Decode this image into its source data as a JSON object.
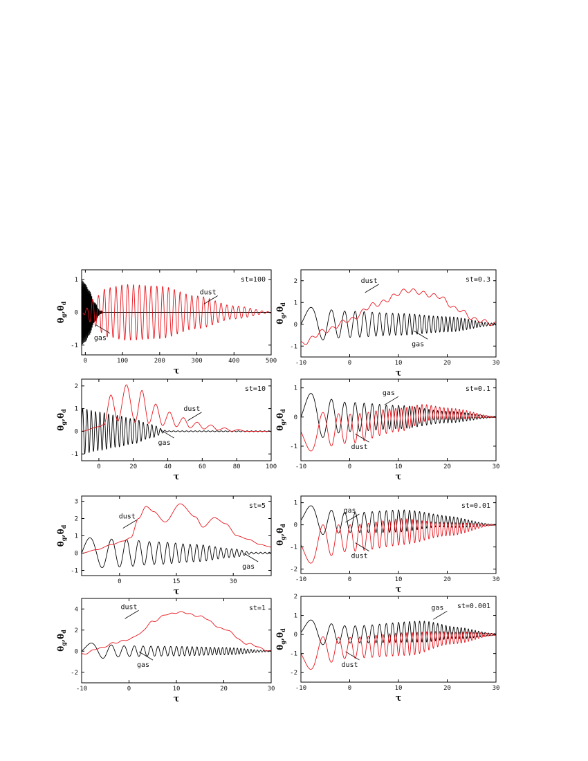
{
  "figure": {
    "ylabel_main": "θ",
    "ylabel_sub_gas": "g",
    "ylabel_sep": ",",
    "ylabel_sub_dust": "d",
    "xlabel": "τ"
  },
  "colors": {
    "gas": "#000000",
    "dust": "#e8131b",
    "frame": "#000000"
  },
  "chart_data": [
    {
      "type": "line",
      "id": "st100",
      "title": "st=100",
      "xlim": [
        -10,
        500
      ],
      "ylim": [
        -1.3,
        1.3
      ],
      "xticks": [
        0,
        100,
        200,
        300,
        400,
        500
      ],
      "yticks": [
        -1,
        0,
        1
      ],
      "series": [
        {
          "name": "gas",
          "kind": "oscillation",
          "freq": 3.0,
          "env": [
            [
              -10,
              1.0
            ],
            [
              0,
              0.9
            ],
            [
              10,
              0.7
            ],
            [
              25,
              0.3
            ],
            [
              40,
              0.05
            ],
            [
              50,
              0.0
            ]
          ]
        },
        {
          "name": "dust",
          "kind": "oscillation",
          "freq": 0.4,
          "env": [
            [
              -10,
              0.0
            ],
            [
              0,
              0.1
            ],
            [
              20,
              0.4
            ],
            [
              60,
              0.75
            ],
            [
              110,
              0.85
            ],
            [
              200,
              0.8
            ],
            [
              300,
              0.5
            ],
            [
              400,
              0.2
            ],
            [
              500,
              0.02
            ]
          ]
        }
      ],
      "annotations": [
        {
          "text": "dust",
          "x": 330,
          "y": 0.55
        },
        {
          "text": "gas",
          "x": 40,
          "y": -0.85
        }
      ]
    },
    {
      "type": "line",
      "id": "st0.3",
      "title": "st=0.3",
      "xlim": [
        -10,
        30
      ],
      "ylim": [
        -1.5,
        2.5
      ],
      "xticks": [
        -10,
        0,
        10,
        20,
        30
      ],
      "yticks": [
        -1,
        0,
        1,
        2
      ],
      "series": [
        {
          "name": "gas",
          "kind": "chirp",
          "a": 0.5,
          "b": 0.12,
          "x0": -10,
          "env": [
            [
              -10,
              0.8
            ],
            [
              0,
              0.6
            ],
            [
              10,
              0.5
            ],
            [
              20,
              0.35
            ],
            [
              30,
              0.05
            ]
          ]
        },
        {
          "name": "dust",
          "kind": "trend",
          "base": [
            [
              -10,
              -0.9
            ],
            [
              -5,
              -0.3
            ],
            [
              0,
              0.2
            ],
            [
              5,
              0.9
            ],
            [
              12,
              1.55
            ],
            [
              18,
              1.3
            ],
            [
              22,
              0.7
            ],
            [
              26,
              0.2
            ],
            [
              30,
              0.0
            ]
          ],
          "ripple": 0.1,
          "freq": 3.0
        }
      ],
      "annotations": [
        {
          "text": "dust",
          "x": 4,
          "y": 1.9
        },
        {
          "text": "gas",
          "x": 14,
          "y": -1.0
        }
      ]
    },
    {
      "type": "line",
      "id": "st10",
      "title": "st=10",
      "xlim": [
        -10,
        100
      ],
      "ylim": [
        -1.3,
        2.3
      ],
      "xticks": [
        0,
        20,
        40,
        60,
        80,
        100
      ],
      "yticks": [
        -1,
        0,
        1,
        2
      ],
      "series": [
        {
          "name": "gas",
          "kind": "oscillation",
          "freq": 2.5,
          "env": [
            [
              -10,
              1.0
            ],
            [
              0,
              0.85
            ],
            [
              10,
              0.7
            ],
            [
              20,
              0.55
            ],
            [
              30,
              0.3
            ],
            [
              40,
              0.02
            ]
          ]
        },
        {
          "name": "dust",
          "kind": "peaks",
          "points": [
            [
              -10,
              0.0
            ],
            [
              0,
              0.2
            ],
            [
              3,
              0.3
            ],
            [
              7,
              1.6
            ],
            [
              11,
              0.45
            ],
            [
              16,
              2.05
            ],
            [
              21,
              0.4
            ],
            [
              25,
              1.8
            ],
            [
              29,
              0.35
            ],
            [
              33,
              1.2
            ],
            [
              37,
              0.25
            ],
            [
              41,
              0.85
            ],
            [
              45,
              0.2
            ],
            [
              49,
              0.6
            ],
            [
              53,
              0.15
            ],
            [
              57,
              0.4
            ],
            [
              61,
              0.1
            ],
            [
              65,
              0.28
            ],
            [
              69,
              0.05
            ],
            [
              73,
              0.15
            ],
            [
              77,
              0.0
            ],
            [
              81,
              0.08
            ],
            [
              85,
              0.0
            ],
            [
              100,
              0.0
            ]
          ]
        }
      ],
      "annotations": [
        {
          "text": "dust",
          "x": 54,
          "y": 0.9
        },
        {
          "text": "gas",
          "x": 38,
          "y": -0.6
        }
      ]
    },
    {
      "type": "line",
      "id": "st0.1",
      "title": "st=0.1",
      "xlim": [
        -10,
        30
      ],
      "ylim": [
        -1.5,
        1.3
      ],
      "xticks": [
        -10,
        0,
        10,
        20,
        30
      ],
      "yticks": [
        -1,
        0,
        1
      ],
      "series": [
        {
          "name": "gas",
          "kind": "chirp",
          "a": 0.5,
          "b": 0.12,
          "x0": -10,
          "env": [
            [
              -10,
              0.85
            ],
            [
              0,
              0.5
            ],
            [
              10,
              0.4
            ],
            [
              20,
              0.2
            ],
            [
              30,
              0.02
            ]
          ]
        },
        {
          "name": "dust",
          "kind": "chirpOffset",
          "a": 0.5,
          "b": 0.12,
          "x0": -10,
          "phase": 3.14,
          "base": [
            [
              -10,
              -0.5
            ],
            [
              0,
              -0.4
            ],
            [
              10,
              -0.1
            ],
            [
              16,
              0.15
            ],
            [
              22,
              0.1
            ],
            [
              30,
              0.0
            ]
          ],
          "env": [
            [
              -10,
              0.7
            ],
            [
              0,
              0.5
            ],
            [
              10,
              0.4
            ],
            [
              20,
              0.2
            ],
            [
              30,
              0.02
            ]
          ]
        }
      ],
      "annotations": [
        {
          "text": "gas",
          "x": 8,
          "y": 0.75
        },
        {
          "text": "dust",
          "x": 2,
          "y": -1.1
        }
      ]
    },
    {
      "type": "line",
      "id": "st5",
      "title": "st=5",
      "xlim": [
        -10,
        40
      ],
      "ylim": [
        -1.3,
        3.3
      ],
      "xticks": [
        0,
        15,
        30
      ],
      "yticks": [
        -1,
        0,
        1,
        2,
        3
      ],
      "series": [
        {
          "name": "gas",
          "kind": "chirp",
          "a": 0.6,
          "b": 0.05,
          "x0": -10,
          "env": [
            [
              -10,
              0.9
            ],
            [
              0,
              0.8
            ],
            [
              10,
              0.65
            ],
            [
              20,
              0.5
            ],
            [
              30,
              0.25
            ],
            [
              35,
              0.05
            ]
          ]
        },
        {
          "name": "dust",
          "kind": "peaks",
          "points": [
            [
              -10,
              0.0
            ],
            [
              -6,
              0.2
            ],
            [
              -2,
              0.5
            ],
            [
              1,
              0.7
            ],
            [
              3,
              0.9
            ],
            [
              5,
              2.0
            ],
            [
              7,
              2.7
            ],
            [
              9,
              2.4
            ],
            [
              12,
              1.8
            ],
            [
              16,
              2.85
            ],
            [
              20,
              2.1
            ],
            [
              22,
              1.5
            ],
            [
              25,
              2.05
            ],
            [
              28,
              1.7
            ],
            [
              31,
              1.0
            ],
            [
              34,
              0.8
            ],
            [
              37,
              0.5
            ],
            [
              40,
              0.35
            ]
          ]
        }
      ],
      "annotations": [
        {
          "text": "dust",
          "x": 2,
          "y": 2.0
        },
        {
          "text": "gas",
          "x": 34,
          "y": -0.9
        }
      ]
    },
    {
      "type": "line",
      "id": "st0.01",
      "title": "st=0.01",
      "xlim": [
        -10,
        30
      ],
      "ylim": [
        -2.2,
        1.3
      ],
      "xticks": [
        -10,
        0,
        10,
        20,
        30
      ],
      "yticks": [
        -2,
        -1,
        0,
        1
      ],
      "series": [
        {
          "name": "gas",
          "kind": "chirpOffset",
          "a": 0.5,
          "b": 0.12,
          "x0": -10,
          "phase": 0,
          "base": [
            [
              -10,
              0.2
            ],
            [
              0,
              0.1
            ],
            [
              15,
              0.2
            ],
            [
              30,
              0.0
            ]
          ],
          "env": [
            [
              -10,
              0.7
            ],
            [
              0,
              0.45
            ],
            [
              10,
              0.5
            ],
            [
              20,
              0.25
            ],
            [
              30,
              0.02
            ]
          ]
        },
        {
          "name": "dust",
          "kind": "chirpOffset",
          "a": 0.5,
          "b": 0.12,
          "x0": -10,
          "phase": 3.14,
          "base": [
            [
              -10,
              -0.9
            ],
            [
              0,
              -0.6
            ],
            [
              12,
              -0.3
            ],
            [
              20,
              -0.2
            ],
            [
              30,
              0.0
            ]
          ],
          "env": [
            [
              -10,
              0.9
            ],
            [
              0,
              0.6
            ],
            [
              10,
              0.6
            ],
            [
              20,
              0.3
            ],
            [
              30,
              0.02
            ]
          ]
        }
      ],
      "annotations": [
        {
          "text": "gas",
          "x": 0,
          "y": 0.55
        },
        {
          "text": "dust",
          "x": 2,
          "y": -1.5
        }
      ]
    },
    {
      "type": "line",
      "id": "st1",
      "title": "st=1",
      "xlim": [
        -10,
        30
      ],
      "ylim": [
        -3,
        5
      ],
      "xticks": [
        -10,
        0,
        10,
        20,
        30
      ],
      "yticks": [
        -2,
        0,
        2,
        4
      ],
      "series": [
        {
          "name": "gas",
          "kind": "chirp",
          "a": 0.5,
          "b": 0.12,
          "x0": -10,
          "env": [
            [
              -10,
              0.8
            ],
            [
              0,
              0.5
            ],
            [
              10,
              0.45
            ],
            [
              20,
              0.35
            ],
            [
              30,
              0.05
            ]
          ]
        },
        {
          "name": "dust",
          "kind": "trend",
          "base": [
            [
              -10,
              -0.3
            ],
            [
              -6,
              0.3
            ],
            [
              -3,
              0.8
            ],
            [
              0,
              1.1
            ],
            [
              2,
              1.6
            ],
            [
              5,
              2.8
            ],
            [
              8,
              3.5
            ],
            [
              11,
              3.7
            ],
            [
              15,
              3.3
            ],
            [
              20,
              2.1
            ],
            [
              25,
              0.7
            ],
            [
              30,
              0.0
            ]
          ],
          "ripple": 0.06,
          "freq": 3.0
        }
      ],
      "annotations": [
        {
          "text": "dust",
          "x": 0,
          "y": 4.0
        },
        {
          "text": "gas",
          "x": 3,
          "y": -1.5
        }
      ]
    },
    {
      "type": "line",
      "id": "st0.001",
      "title": "st=0.001",
      "xlim": [
        -10,
        30
      ],
      "ylim": [
        -2.5,
        2
      ],
      "xticks": [
        -10,
        0,
        10,
        20,
        30
      ],
      "yticks": [
        -2,
        -1,
        0,
        1,
        2
      ],
      "series": [
        {
          "name": "gas",
          "kind": "chirpOffset",
          "a": 0.5,
          "b": 0.12,
          "x0": -10,
          "phase": 0,
          "base": [
            [
              -10,
              0.1
            ],
            [
              0,
              0.0
            ],
            [
              15,
              0.15
            ],
            [
              30,
              0.0
            ]
          ],
          "env": [
            [
              -10,
              0.7
            ],
            [
              0,
              0.45
            ],
            [
              15,
              0.55
            ],
            [
              22,
              0.3
            ],
            [
              30,
              0.05
            ]
          ]
        },
        {
          "name": "dust",
          "kind": "chirpOffset",
          "a": 0.5,
          "b": 0.12,
          "x0": -10,
          "phase": 3.14,
          "base": [
            [
              -10,
              -1.0
            ],
            [
              0,
              -0.7
            ],
            [
              12,
              -0.5
            ],
            [
              20,
              -0.2
            ],
            [
              30,
              0.0
            ]
          ],
          "env": [
            [
              -10,
              0.9
            ],
            [
              0,
              0.55
            ],
            [
              12,
              0.6
            ],
            [
              22,
              0.3
            ],
            [
              30,
              0.05
            ]
          ]
        }
      ],
      "annotations": [
        {
          "text": "gas",
          "x": 18,
          "y": 1.3
        },
        {
          "text": "dust",
          "x": 0,
          "y": -1.7
        }
      ]
    }
  ]
}
